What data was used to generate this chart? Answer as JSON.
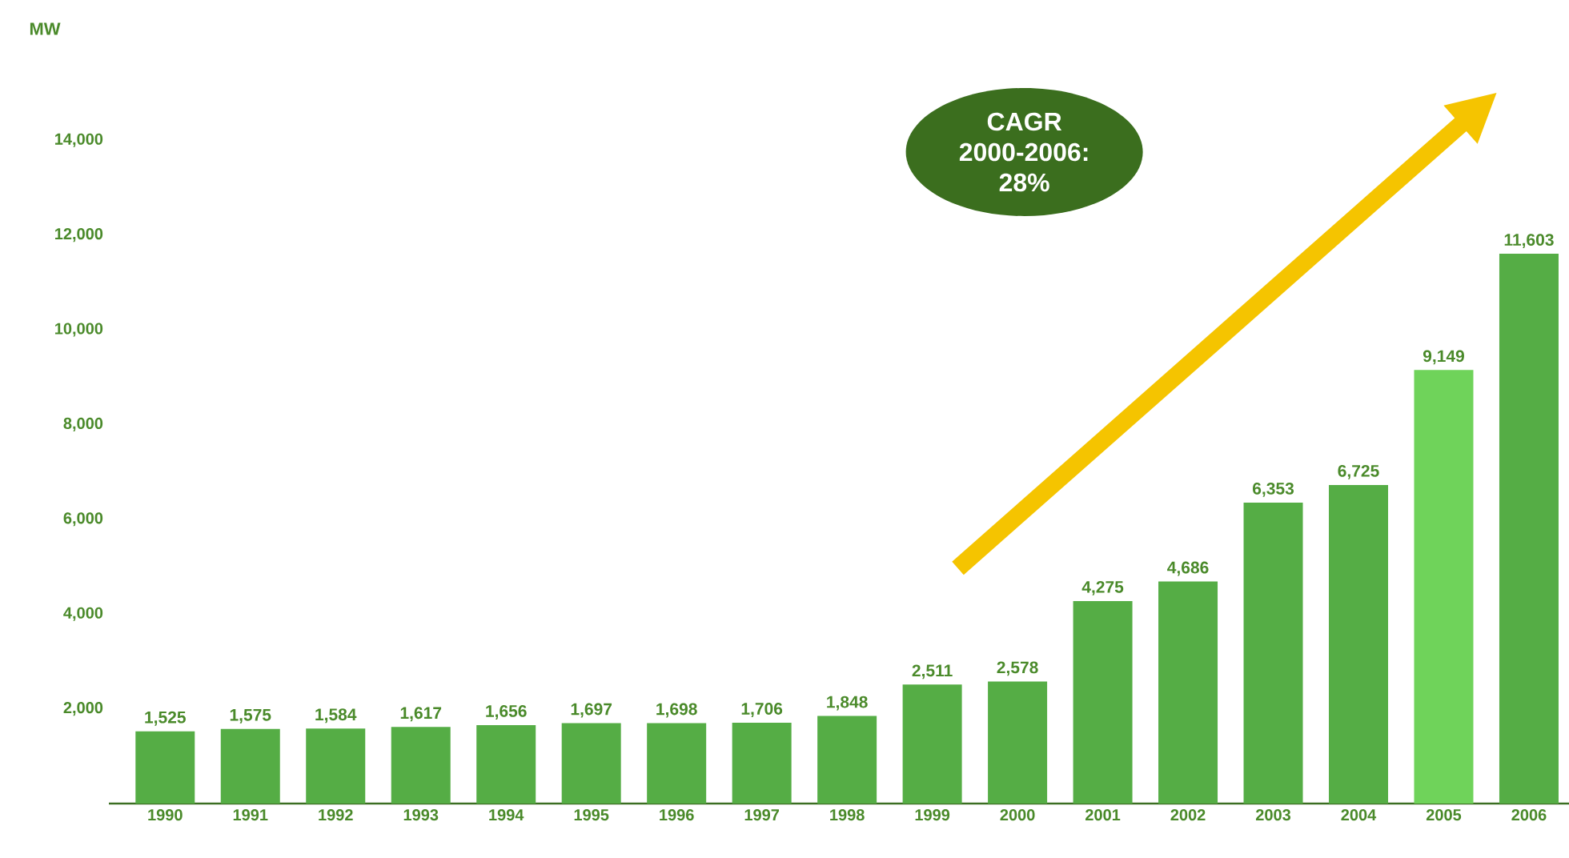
{
  "chart_data": {
    "type": "bar",
    "categories": [
      "1990",
      "1991",
      "1992",
      "1993",
      "1994",
      "1995",
      "1996",
      "1997",
      "1998",
      "1999",
      "2000",
      "2001",
      "2002",
      "2003",
      "2004",
      "2005",
      "2006"
    ],
    "values": [
      1525,
      1575,
      1584,
      1617,
      1656,
      1697,
      1698,
      1706,
      1848,
      2511,
      2578,
      4275,
      4686,
      6353,
      6725,
      9149,
      11603
    ],
    "colors": [
      "#55ad45",
      "#55ad45",
      "#55ad45",
      "#55ad45",
      "#55ad45",
      "#55ad45",
      "#55ad45",
      "#55ad45",
      "#55ad45",
      "#55ad45",
      "#55ad45",
      "#55ad45",
      "#55ad45",
      "#55ad45",
      "#55ad45",
      "#6fd35a",
      "#55ad45"
    ],
    "ylim": [
      0,
      14000
    ],
    "yticks": [
      {
        "value": 2000,
        "label": "2,000"
      },
      {
        "value": 4000,
        "label": "4,000"
      },
      {
        "value": 6000,
        "label": "6,000"
      },
      {
        "value": 8000,
        "label": "8,000"
      },
      {
        "value": 10000,
        "label": "10,000"
      },
      {
        "value": 12000,
        "label": "12,000"
      },
      {
        "value": 14000,
        "label": "14,000"
      }
    ],
    "value_labels": [
      "1,525",
      "1,575",
      "1,584",
      "1,617",
      "1,656",
      "1,697",
      "1,698",
      "1,706",
      "1,848",
      "2,511",
      "2,578",
      "4,275",
      "4,686",
      "6,353",
      "6,725",
      "9,149",
      "11,603"
    ],
    "annotations": [
      "MW",
      "CAGR 2000-2006: 28%"
    ]
  }
}
